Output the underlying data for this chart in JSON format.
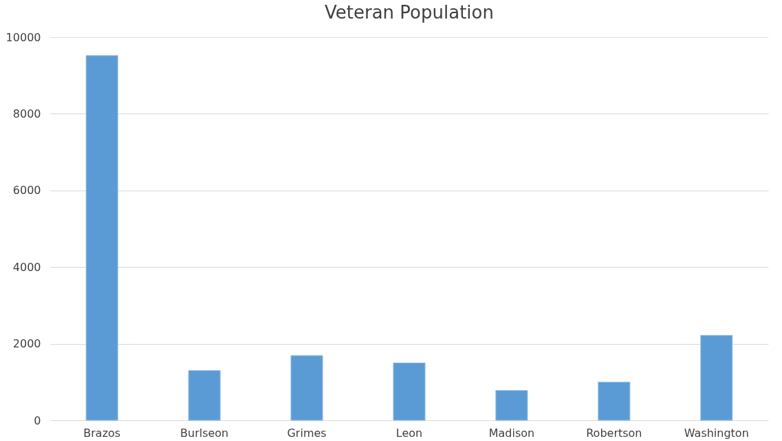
{
  "chart_data": {
    "type": "bar",
    "title": "Veteran Population",
    "categories": [
      "Brazos",
      "Burlseon",
      "Grimes",
      "Leon",
      "Madison",
      "Robertson",
      "Washington"
    ],
    "values": [
      9520,
      1300,
      1690,
      1500,
      780,
      1000,
      2220
    ],
    "color": "#5b9bd5",
    "ylim": [
      0,
      10000
    ],
    "yticks": [
      0,
      2000,
      4000,
      6000,
      8000,
      10000
    ],
    "grid": "y"
  }
}
